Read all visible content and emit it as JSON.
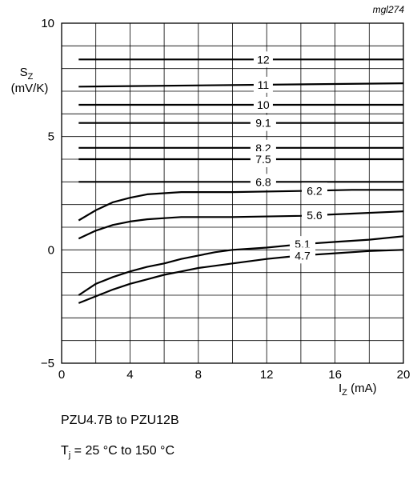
{
  "figure_code": "mgl274",
  "caption": {
    "line1": "PZU4.7B to PZU12B",
    "line2_prefix": "T",
    "line2_sub": "j",
    "line2_rest": " = 25 °C to 150 °C"
  },
  "chart_data": {
    "type": "line",
    "title": "",
    "xlabel": {
      "main": "I",
      "sub": "Z",
      "unit": " (mA)"
    },
    "ylabel": {
      "main": "S",
      "sub": "Z",
      "unit": "(mV/K)"
    },
    "xlim": [
      0,
      20
    ],
    "ylim": [
      -5,
      10
    ],
    "x_tick_labels": [
      "0",
      "4",
      "8",
      "12",
      "16",
      "20"
    ],
    "x_tick_values": [
      0,
      4,
      8,
      12,
      16,
      20
    ],
    "y_tick_labels": [
      "−5",
      "0",
      "5",
      "10"
    ],
    "y_tick_values": [
      -5,
      0,
      5,
      10
    ],
    "grid": true,
    "grid_x_step": 2,
    "grid_y_step": 1,
    "series": [
      {
        "name": "12",
        "label_x": 11.8,
        "points": [
          [
            1,
            8.4
          ],
          [
            20,
            8.4
          ]
        ]
      },
      {
        "name": "11",
        "label_x": 11.8,
        "points": [
          [
            1,
            7.2
          ],
          [
            20,
            7.35
          ]
        ]
      },
      {
        "name": "10",
        "label_x": 11.8,
        "points": [
          [
            1,
            6.4
          ],
          [
            20,
            6.4
          ]
        ]
      },
      {
        "name": "9.1",
        "label_x": 11.8,
        "points": [
          [
            1,
            5.6
          ],
          [
            20,
            5.6
          ]
        ]
      },
      {
        "name": "8.2",
        "label_x": 11.8,
        "points": [
          [
            1,
            4.5
          ],
          [
            20,
            4.5
          ]
        ]
      },
      {
        "name": "7.5",
        "label_x": 11.8,
        "points": [
          [
            1,
            4.0
          ],
          [
            20,
            4.0
          ]
        ]
      },
      {
        "name": "6.8",
        "label_x": 11.8,
        "points": [
          [
            1,
            3.0
          ],
          [
            20,
            3.0
          ]
        ]
      },
      {
        "name": "6.2",
        "label_x": 14.8,
        "points": [
          [
            1,
            1.3
          ],
          [
            2,
            1.75
          ],
          [
            3,
            2.1
          ],
          [
            4,
            2.3
          ],
          [
            5,
            2.45
          ],
          [
            6,
            2.5
          ],
          [
            7,
            2.55
          ],
          [
            10,
            2.55
          ],
          [
            14,
            2.6
          ],
          [
            17,
            2.65
          ],
          [
            20,
            2.65
          ]
        ]
      },
      {
        "name": "5.6",
        "label_x": 14.8,
        "points": [
          [
            1,
            0.5
          ],
          [
            2,
            0.85
          ],
          [
            3,
            1.1
          ],
          [
            4,
            1.25
          ],
          [
            5,
            1.35
          ],
          [
            6,
            1.4
          ],
          [
            7,
            1.45
          ],
          [
            10,
            1.45
          ],
          [
            14,
            1.5
          ],
          [
            17,
            1.6
          ],
          [
            20,
            1.7
          ]
        ]
      },
      {
        "name": "5.1",
        "label_x": 14.1,
        "points": [
          [
            1,
            -2.0
          ],
          [
            2,
            -1.5
          ],
          [
            3,
            -1.2
          ],
          [
            4,
            -0.95
          ],
          [
            5,
            -0.75
          ],
          [
            6,
            -0.6
          ],
          [
            7,
            -0.4
          ],
          [
            8,
            -0.25
          ],
          [
            9,
            -0.1
          ],
          [
            10,
            0.0
          ],
          [
            12,
            0.1
          ],
          [
            14,
            0.25
          ],
          [
            16,
            0.35
          ],
          [
            18,
            0.45
          ],
          [
            20,
            0.6
          ]
        ]
      },
      {
        "name": "4.7",
        "label_x": 14.1,
        "points": [
          [
            1,
            -2.35
          ],
          [
            2,
            -2.05
          ],
          [
            3,
            -1.75
          ],
          [
            4,
            -1.5
          ],
          [
            5,
            -1.3
          ],
          [
            6,
            -1.1
          ],
          [
            7,
            -0.95
          ],
          [
            8,
            -0.8
          ],
          [
            10,
            -0.6
          ],
          [
            12,
            -0.4
          ],
          [
            14,
            -0.25
          ],
          [
            16,
            -0.15
          ],
          [
            18,
            -0.05
          ],
          [
            20,
            0.0
          ]
        ]
      }
    ]
  }
}
